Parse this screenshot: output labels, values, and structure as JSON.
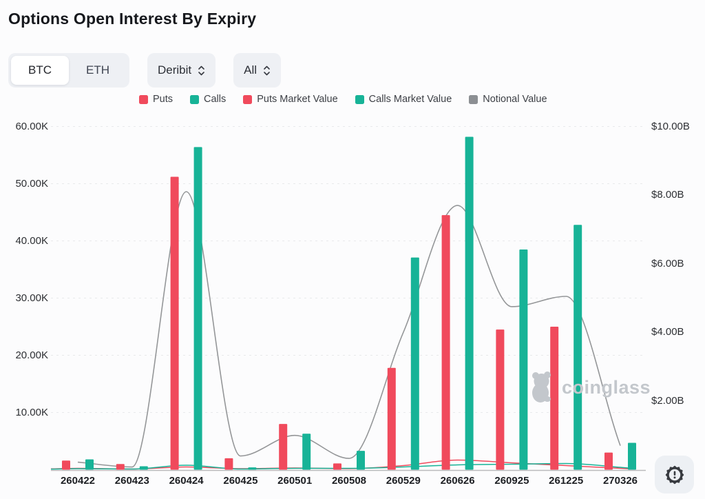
{
  "header": {
    "title": "Options Open Interest By Expiry"
  },
  "controls": {
    "asset_toggle": {
      "options": [
        "BTC",
        "ETH"
      ],
      "selected": "BTC"
    },
    "exchange_select": {
      "value": "Deribit"
    },
    "range_select": {
      "value": "All"
    }
  },
  "legend": [
    {
      "label": "Puts",
      "color": "#f04a5c"
    },
    {
      "label": "Calls",
      "color": "#17b397"
    },
    {
      "label": "Puts Market Value",
      "color": "#f04a5c"
    },
    {
      "label": "Calls Market Value",
      "color": "#17b397"
    },
    {
      "label": "Notional Value",
      "color": "#8c8f93"
    }
  ],
  "watermark": {
    "text": "coinglass"
  },
  "chart_data": {
    "type": "bar",
    "title": "Options Open Interest By Expiry",
    "categories": [
      "260422",
      "260423",
      "260424",
      "260425",
      "260501",
      "260508",
      "260529",
      "260626",
      "260925",
      "261225",
      "270326"
    ],
    "series": [
      {
        "name": "Puts",
        "type": "bar",
        "axis": "left",
        "unit": "K contracts",
        "color": "#f04a5c",
        "values": [
          1.6,
          1.0,
          51.2,
          2.0,
          8.0,
          1.1,
          17.8,
          44.5,
          24.5,
          25.0,
          3.0
        ]
      },
      {
        "name": "Calls",
        "type": "bar",
        "axis": "left",
        "unit": "K contracts",
        "color": "#17b397",
        "values": [
          1.8,
          0.6,
          56.4,
          0.4,
          6.3,
          3.3,
          37.1,
          58.2,
          38.5,
          42.8,
          4.7
        ]
      },
      {
        "name": "Puts Market Value",
        "type": "line",
        "axis": "right",
        "unit": "$B",
        "color": "#f04a5c",
        "values": [
          0.04,
          0.02,
          0.08,
          0.03,
          0.05,
          0.03,
          0.12,
          0.28,
          0.2,
          0.12,
          0.04
        ]
      },
      {
        "name": "Calls Market Value",
        "type": "line",
        "axis": "right",
        "unit": "$B",
        "color": "#17b397",
        "values": [
          0.03,
          0.02,
          0.13,
          0.02,
          0.04,
          0.04,
          0.08,
          0.14,
          0.16,
          0.18,
          0.07
        ]
      },
      {
        "name": "Notional Value",
        "type": "line",
        "axis": "right",
        "unit": "$B",
        "color": "#949698",
        "values": [
          0.22,
          0.08,
          8.1,
          0.4,
          1.0,
          0.33,
          4.0,
          7.7,
          4.75,
          5.05,
          0.7
        ]
      }
    ],
    "left_axis": {
      "ticks": [
        "60.00K",
        "50.00K",
        "40.00K",
        "30.00K",
        "20.00K",
        "10.00K"
      ],
      "tick_values_k": [
        60,
        50,
        40,
        30,
        20,
        10
      ],
      "min": 0,
      "max_k": 60
    },
    "right_axis": {
      "ticks": [
        "$10.00B",
        "$8.00B",
        "$6.00B",
        "$4.00B",
        "$2.00B"
      ],
      "tick_values_b": [
        10,
        8,
        6,
        4,
        2
      ],
      "min": 0,
      "max_b": 10
    },
    "grid": "horizontal-dashed",
    "legend_position": "top"
  }
}
